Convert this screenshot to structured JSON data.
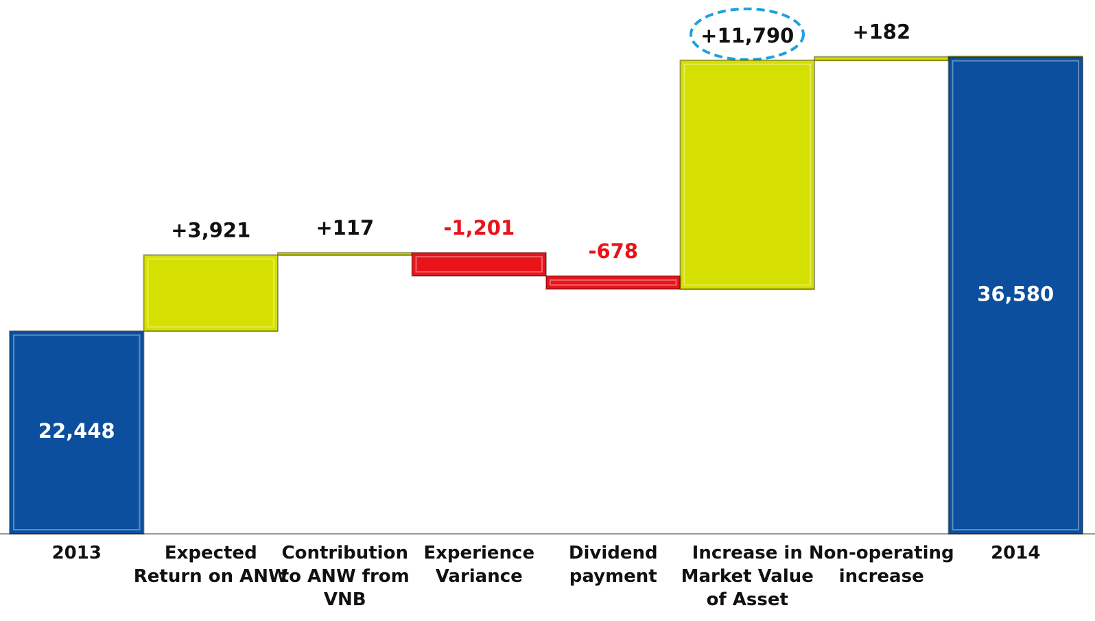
{
  "chart_data": {
    "type": "waterfall",
    "categories": [
      "2013",
      "Expected Return on ANW",
      "Contribution to ANW from VNB",
      "Experience Variance",
      "Dividend payment",
      "Increase in Market Value of Asset",
      "Non-operating increase",
      "2014"
    ],
    "values": [
      22448,
      3921,
      117,
      -1201,
      -678,
      11790,
      182,
      36580
    ],
    "value_labels": [
      "22,448",
      "+3,921",
      "+117",
      "-1,201",
      "-678",
      "+11,790",
      "+182",
      "36,580"
    ],
    "measure": [
      "total",
      "relative",
      "relative",
      "relative",
      "relative",
      "relative",
      "relative",
      "total"
    ],
    "colors": {
      "total": "#0b4f9e",
      "increase": "#d6e000",
      "decrease": "#e8141a"
    },
    "ylim": [
      12000,
      39500
    ]
  }
}
